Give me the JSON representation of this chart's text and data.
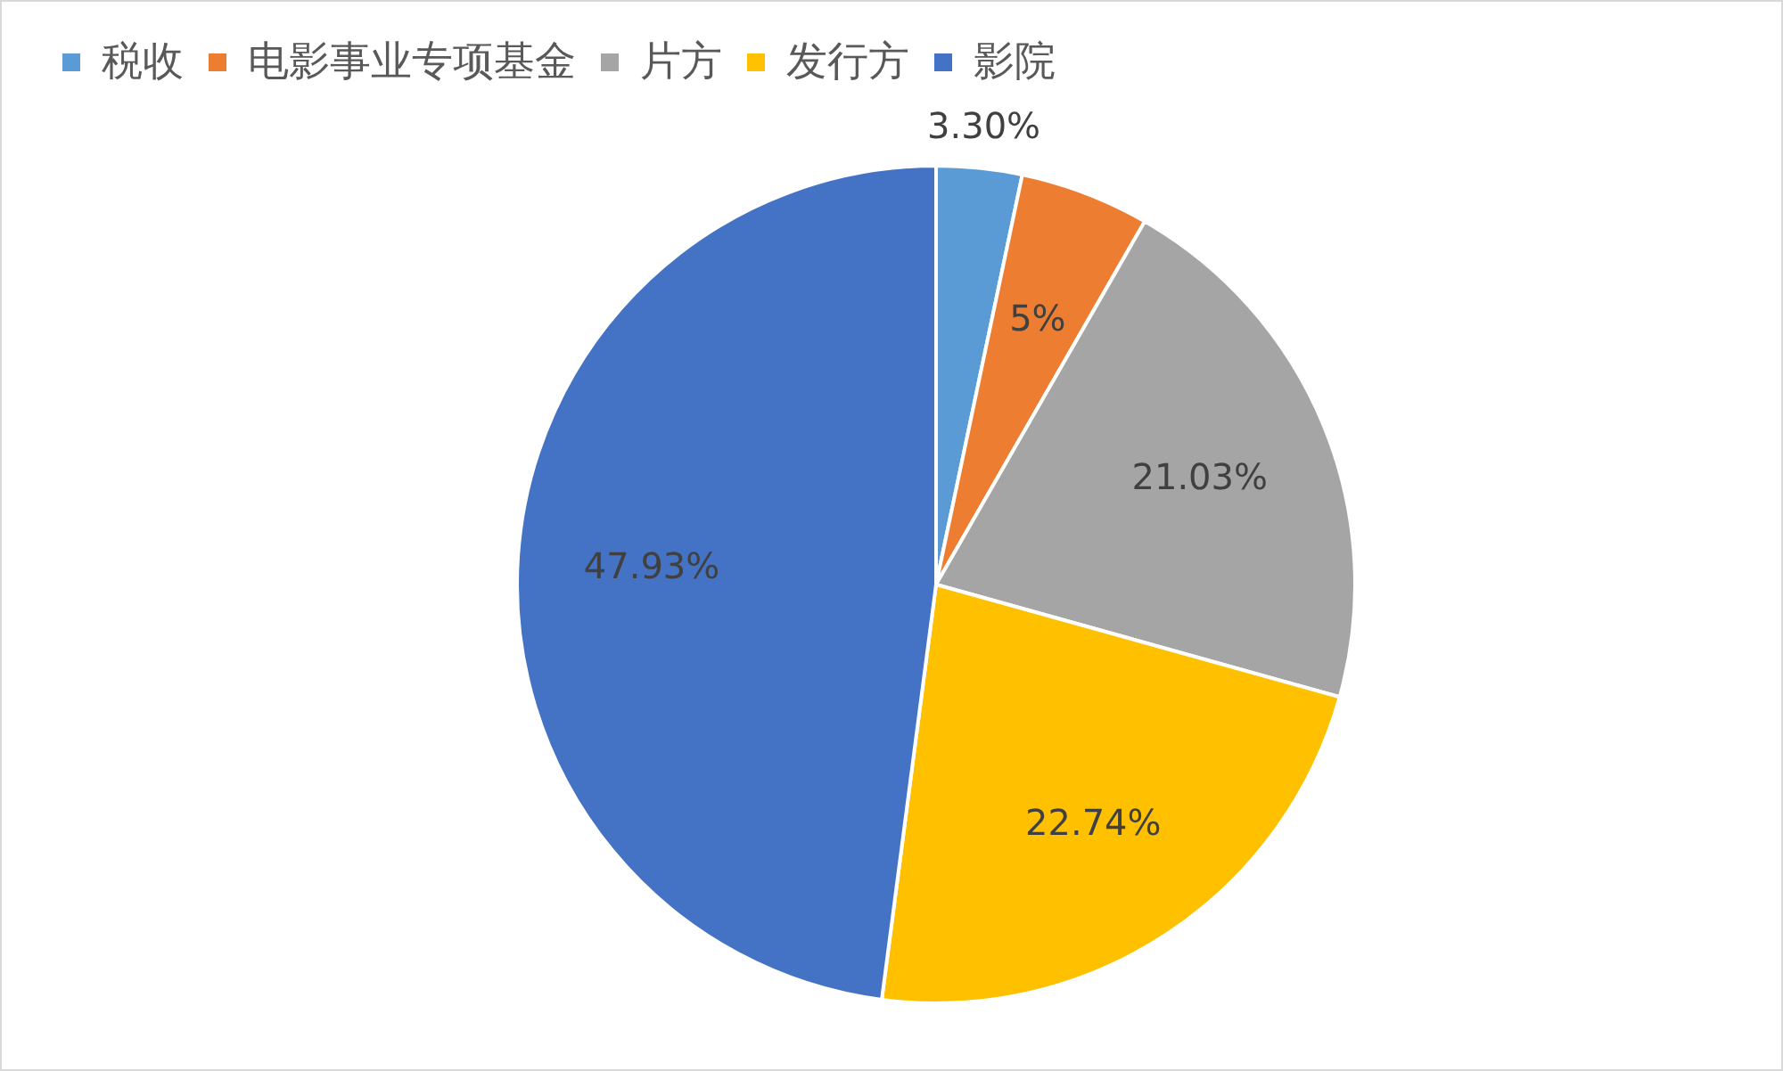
{
  "chart_data": {
    "type": "pie",
    "categories": [
      "税收",
      "电影事业专项基金",
      "片方",
      "发行方",
      "影院"
    ],
    "values": [
      3.3,
      5,
      21.03,
      22.74,
      47.93
    ],
    "colors": [
      "#5b9bd5",
      "#ed7d31",
      "#a5a5a5",
      "#ffc000",
      "#4472c4"
    ],
    "value_labels": [
      "3.30%",
      "5%",
      "21.03%",
      "22.74%",
      "47.93%"
    ],
    "legend": "top left"
  }
}
